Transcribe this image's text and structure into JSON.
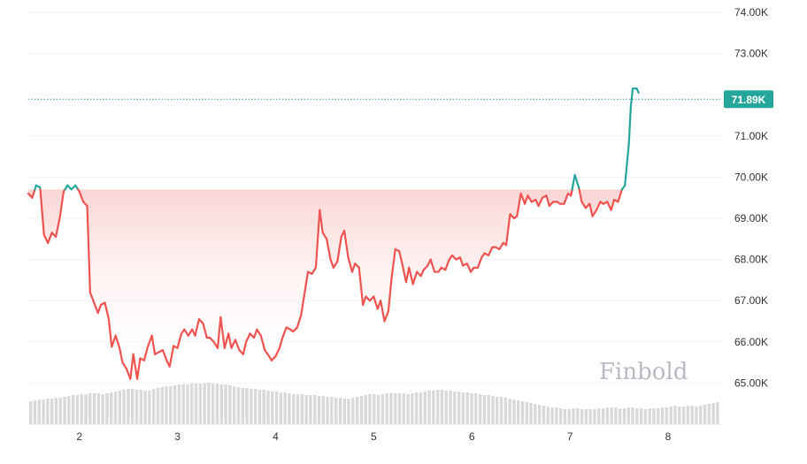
{
  "watermark": "Finbold",
  "current_price_label": "71.89K",
  "colors": {
    "up": "#26a69a",
    "down": "#ef5350",
    "area_top": "#f8c6c5",
    "volume": "#d9d9d9",
    "grid": "#f0f3fa",
    "price_line": "#26a69a"
  },
  "chart_data": {
    "type": "line",
    "title": "",
    "xlabel": "",
    "ylabel": "",
    "ylim": [
      64000,
      74300
    ],
    "xlim": [
      1.48,
      8.55
    ],
    "yticks": [
      "65.00K",
      "66.00K",
      "67.00K",
      "68.00K",
      "69.00K",
      "70.00K",
      "71.00K",
      "72.00K",
      "73.00K",
      "74.00K"
    ],
    "ytick_values": [
      65000,
      66000,
      67000,
      68000,
      69000,
      70000,
      71000,
      72000,
      73000,
      74000
    ],
    "xticks": [
      "2",
      "3",
      "4",
      "5",
      "6",
      "7",
      "8"
    ],
    "xtick_values": [
      2,
      3,
      4,
      5,
      6,
      7,
      8
    ],
    "current_price": 71890,
    "baseline": 69700,
    "grid": true,
    "series": [
      {
        "values": [
          [
            1.48,
            69600
          ],
          [
            1.52,
            69500
          ],
          [
            1.56,
            69800
          ],
          [
            1.6,
            69750
          ],
          [
            1.64,
            68600
          ],
          [
            1.68,
            68400
          ],
          [
            1.72,
            68650
          ],
          [
            1.76,
            68550
          ],
          [
            1.8,
            69000
          ],
          [
            1.84,
            69650
          ],
          [
            1.88,
            69800
          ],
          [
            1.92,
            69700
          ],
          [
            1.96,
            69800
          ],
          [
            2.0,
            69650
          ],
          [
            2.04,
            69400
          ],
          [
            2.08,
            69300
          ],
          [
            2.11,
            67200
          ],
          [
            2.15,
            66950
          ],
          [
            2.19,
            66700
          ],
          [
            2.22,
            66900
          ],
          [
            2.26,
            66950
          ],
          [
            2.3,
            66550
          ],
          [
            2.33,
            65880
          ],
          [
            2.37,
            66150
          ],
          [
            2.41,
            65850
          ],
          [
            2.44,
            65500
          ],
          [
            2.48,
            65350
          ],
          [
            2.52,
            65100
          ],
          [
            2.55,
            65700
          ],
          [
            2.59,
            65100
          ],
          [
            2.62,
            65600
          ],
          [
            2.66,
            65550
          ],
          [
            2.7,
            65900
          ],
          [
            2.74,
            66150
          ],
          [
            2.77,
            65700
          ],
          [
            2.81,
            65750
          ],
          [
            2.85,
            65800
          ],
          [
            2.89,
            65550
          ],
          [
            2.92,
            65400
          ],
          [
            2.96,
            65900
          ],
          [
            3.0,
            65850
          ],
          [
            3.04,
            66200
          ],
          [
            3.07,
            66300
          ],
          [
            3.11,
            66150
          ],
          [
            3.15,
            66300
          ],
          [
            3.18,
            66150
          ],
          [
            3.22,
            66550
          ],
          [
            3.26,
            66450
          ],
          [
            3.3,
            66100
          ],
          [
            3.33,
            66100
          ],
          [
            3.37,
            66000
          ],
          [
            3.41,
            65850
          ],
          [
            3.44,
            66600
          ],
          [
            3.48,
            65850
          ],
          [
            3.52,
            66200
          ],
          [
            3.55,
            65850
          ],
          [
            3.59,
            66050
          ],
          [
            3.63,
            65800
          ],
          [
            3.67,
            65700
          ],
          [
            3.7,
            66000
          ],
          [
            3.74,
            66200
          ],
          [
            3.78,
            66100
          ],
          [
            3.81,
            66300
          ],
          [
            3.85,
            66150
          ],
          [
            3.89,
            65800
          ],
          [
            3.92,
            65700
          ],
          [
            3.96,
            65550
          ],
          [
            4.0,
            65650
          ],
          [
            4.04,
            65850
          ],
          [
            4.07,
            66100
          ],
          [
            4.11,
            66350
          ],
          [
            4.15,
            66300
          ],
          [
            4.18,
            66250
          ],
          [
            4.22,
            66350
          ],
          [
            4.26,
            66650
          ],
          [
            4.3,
            67250
          ],
          [
            4.33,
            67700
          ],
          [
            4.37,
            67650
          ],
          [
            4.41,
            67800
          ],
          [
            4.45,
            69200
          ],
          [
            4.48,
            68650
          ],
          [
            4.52,
            68500
          ],
          [
            4.56,
            68000
          ],
          [
            4.59,
            67800
          ],
          [
            4.63,
            67950
          ],
          [
            4.67,
            68550
          ],
          [
            4.7,
            68700
          ],
          [
            4.74,
            68050
          ],
          [
            4.78,
            67700
          ],
          [
            4.81,
            67900
          ],
          [
            4.85,
            67800
          ],
          [
            4.89,
            66900
          ],
          [
            4.92,
            67100
          ],
          [
            4.96,
            67000
          ],
          [
            5.0,
            67100
          ],
          [
            5.04,
            66800
          ],
          [
            5.07,
            67000
          ],
          [
            5.11,
            66500
          ],
          [
            5.15,
            66750
          ],
          [
            5.18,
            67500
          ],
          [
            5.22,
            68250
          ],
          [
            5.26,
            68200
          ],
          [
            5.29,
            67900
          ],
          [
            5.33,
            67450
          ],
          [
            5.36,
            67800
          ],
          [
            5.4,
            67400
          ],
          [
            5.44,
            67700
          ],
          [
            5.48,
            67600
          ],
          [
            5.51,
            67750
          ],
          [
            5.55,
            67850
          ],
          [
            5.58,
            68000
          ],
          [
            5.62,
            67700
          ],
          [
            5.66,
            67700
          ],
          [
            5.69,
            67800
          ],
          [
            5.73,
            67750
          ],
          [
            5.77,
            68000
          ],
          [
            5.8,
            68100
          ],
          [
            5.84,
            68000
          ],
          [
            5.88,
            68050
          ],
          [
            5.91,
            67850
          ],
          [
            5.95,
            67900
          ],
          [
            5.99,
            67700
          ],
          [
            6.02,
            67800
          ],
          [
            6.06,
            67800
          ],
          [
            6.1,
            68050
          ],
          [
            6.13,
            68150
          ],
          [
            6.17,
            68100
          ],
          [
            6.21,
            68300
          ],
          [
            6.24,
            68300
          ],
          [
            6.28,
            68250
          ],
          [
            6.32,
            68400
          ],
          [
            6.35,
            68350
          ],
          [
            6.39,
            69100
          ],
          [
            6.43,
            69000
          ],
          [
            6.46,
            69050
          ],
          [
            6.5,
            69600
          ],
          [
            6.54,
            69350
          ],
          [
            6.57,
            69550
          ],
          [
            6.61,
            69400
          ],
          [
            6.65,
            69450
          ],
          [
            6.68,
            69300
          ],
          [
            6.72,
            69500
          ],
          [
            6.76,
            69550
          ],
          [
            6.79,
            69300
          ],
          [
            6.83,
            69400
          ],
          [
            6.87,
            69400
          ],
          [
            6.9,
            69350
          ],
          [
            6.94,
            69350
          ],
          [
            6.98,
            69600
          ],
          [
            7.01,
            69550
          ],
          [
            7.05,
            70050
          ],
          [
            7.09,
            69750
          ],
          [
            7.12,
            69400
          ],
          [
            7.16,
            69250
          ],
          [
            7.2,
            69350
          ],
          [
            7.23,
            69050
          ],
          [
            7.27,
            69200
          ],
          [
            7.31,
            69400
          ],
          [
            7.34,
            69350
          ],
          [
            7.38,
            69400
          ],
          [
            7.42,
            69200
          ],
          [
            7.45,
            69450
          ],
          [
            7.49,
            69400
          ],
          [
            7.53,
            69700
          ],
          [
            7.56,
            69800
          ],
          [
            7.6,
            70800
          ],
          [
            7.62,
            71700
          ],
          [
            7.64,
            72150
          ],
          [
            7.68,
            72150
          ],
          [
            7.7,
            72050
          ]
        ]
      }
    ],
    "volume": [
      0.26,
      0.27,
      0.28,
      0.28,
      0.29,
      0.29,
      0.3,
      0.3,
      0.31,
      0.32,
      0.33,
      0.33,
      0.34,
      0.34,
      0.35,
      0.35,
      0.35,
      0.34,
      0.35,
      0.36,
      0.37,
      0.38,
      0.39,
      0.4,
      0.4,
      0.39,
      0.39,
      0.38,
      0.38,
      0.4,
      0.41,
      0.42,
      0.43,
      0.43,
      0.44,
      0.45,
      0.45,
      0.45,
      0.46,
      0.46,
      0.46,
      0.46,
      0.47,
      0.46,
      0.46,
      0.45,
      0.45,
      0.44,
      0.43,
      0.42,
      0.41,
      0.41,
      0.4,
      0.4,
      0.39,
      0.39,
      0.38,
      0.37,
      0.37,
      0.36,
      0.36,
      0.35,
      0.34,
      0.34,
      0.34,
      0.33,
      0.33,
      0.33,
      0.32,
      0.32,
      0.31,
      0.31,
      0.3,
      0.3,
      0.29,
      0.29,
      0.3,
      0.31,
      0.32,
      0.33,
      0.34,
      0.34,
      0.33,
      0.34,
      0.35,
      0.35,
      0.35,
      0.35,
      0.35,
      0.34,
      0.35,
      0.36,
      0.36,
      0.37,
      0.38,
      0.38,
      0.39,
      0.39,
      0.38,
      0.38,
      0.37,
      0.37,
      0.36,
      0.36,
      0.35,
      0.35,
      0.34,
      0.33,
      0.33,
      0.32,
      0.31,
      0.31,
      0.3,
      0.29,
      0.28,
      0.27,
      0.26,
      0.25,
      0.24,
      0.23,
      0.22,
      0.21,
      0.2,
      0.19,
      0.19,
      0.18,
      0.17,
      0.17,
      0.18,
      0.18,
      0.17,
      0.17,
      0.17,
      0.17,
      0.18,
      0.18,
      0.19,
      0.19,
      0.19,
      0.18,
      0.18,
      0.19,
      0.19,
      0.18,
      0.18,
      0.17,
      0.18,
      0.18,
      0.18,
      0.19,
      0.19,
      0.2,
      0.21,
      0.2,
      0.2,
      0.21,
      0.21,
      0.2,
      0.21,
      0.22,
      0.23,
      0.24,
      0.25
    ]
  }
}
